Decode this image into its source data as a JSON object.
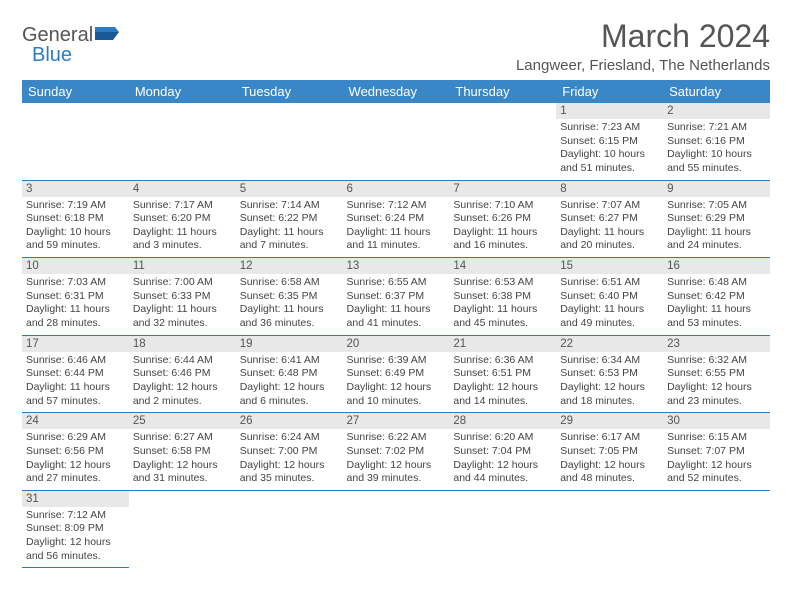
{
  "brand": {
    "name1": "General",
    "name2": "Blue"
  },
  "title": "March 2024",
  "location": "Langweer, Friesland, The Netherlands",
  "colors": {
    "header_bg": "#3a87c8",
    "header_fg": "#ffffff",
    "accent": "#2d7bc4",
    "daynum_bg": "#e8e8e8",
    "text": "#444"
  },
  "days_of_week": [
    "Sunday",
    "Monday",
    "Tuesday",
    "Wednesday",
    "Thursday",
    "Friday",
    "Saturday"
  ],
  "weeks": [
    [
      null,
      null,
      null,
      null,
      null,
      {
        "n": "1",
        "sr": "Sunrise: 7:23 AM",
        "ss": "Sunset: 6:15 PM",
        "dl1": "Daylight: 10 hours",
        "dl2": "and 51 minutes."
      },
      {
        "n": "2",
        "sr": "Sunrise: 7:21 AM",
        "ss": "Sunset: 6:16 PM",
        "dl1": "Daylight: 10 hours",
        "dl2": "and 55 minutes."
      }
    ],
    [
      {
        "n": "3",
        "sr": "Sunrise: 7:19 AM",
        "ss": "Sunset: 6:18 PM",
        "dl1": "Daylight: 10 hours",
        "dl2": "and 59 minutes."
      },
      {
        "n": "4",
        "sr": "Sunrise: 7:17 AM",
        "ss": "Sunset: 6:20 PM",
        "dl1": "Daylight: 11 hours",
        "dl2": "and 3 minutes."
      },
      {
        "n": "5",
        "sr": "Sunrise: 7:14 AM",
        "ss": "Sunset: 6:22 PM",
        "dl1": "Daylight: 11 hours",
        "dl2": "and 7 minutes."
      },
      {
        "n": "6",
        "sr": "Sunrise: 7:12 AM",
        "ss": "Sunset: 6:24 PM",
        "dl1": "Daylight: 11 hours",
        "dl2": "and 11 minutes."
      },
      {
        "n": "7",
        "sr": "Sunrise: 7:10 AM",
        "ss": "Sunset: 6:26 PM",
        "dl1": "Daylight: 11 hours",
        "dl2": "and 16 minutes."
      },
      {
        "n": "8",
        "sr": "Sunrise: 7:07 AM",
        "ss": "Sunset: 6:27 PM",
        "dl1": "Daylight: 11 hours",
        "dl2": "and 20 minutes."
      },
      {
        "n": "9",
        "sr": "Sunrise: 7:05 AM",
        "ss": "Sunset: 6:29 PM",
        "dl1": "Daylight: 11 hours",
        "dl2": "and 24 minutes."
      }
    ],
    [
      {
        "n": "10",
        "sr": "Sunrise: 7:03 AM",
        "ss": "Sunset: 6:31 PM",
        "dl1": "Daylight: 11 hours",
        "dl2": "and 28 minutes."
      },
      {
        "n": "11",
        "sr": "Sunrise: 7:00 AM",
        "ss": "Sunset: 6:33 PM",
        "dl1": "Daylight: 11 hours",
        "dl2": "and 32 minutes."
      },
      {
        "n": "12",
        "sr": "Sunrise: 6:58 AM",
        "ss": "Sunset: 6:35 PM",
        "dl1": "Daylight: 11 hours",
        "dl2": "and 36 minutes."
      },
      {
        "n": "13",
        "sr": "Sunrise: 6:55 AM",
        "ss": "Sunset: 6:37 PM",
        "dl1": "Daylight: 11 hours",
        "dl2": "and 41 minutes."
      },
      {
        "n": "14",
        "sr": "Sunrise: 6:53 AM",
        "ss": "Sunset: 6:38 PM",
        "dl1": "Daylight: 11 hours",
        "dl2": "and 45 minutes."
      },
      {
        "n": "15",
        "sr": "Sunrise: 6:51 AM",
        "ss": "Sunset: 6:40 PM",
        "dl1": "Daylight: 11 hours",
        "dl2": "and 49 minutes."
      },
      {
        "n": "16",
        "sr": "Sunrise: 6:48 AM",
        "ss": "Sunset: 6:42 PM",
        "dl1": "Daylight: 11 hours",
        "dl2": "and 53 minutes."
      }
    ],
    [
      {
        "n": "17",
        "sr": "Sunrise: 6:46 AM",
        "ss": "Sunset: 6:44 PM",
        "dl1": "Daylight: 11 hours",
        "dl2": "and 57 minutes."
      },
      {
        "n": "18",
        "sr": "Sunrise: 6:44 AM",
        "ss": "Sunset: 6:46 PM",
        "dl1": "Daylight: 12 hours",
        "dl2": "and 2 minutes."
      },
      {
        "n": "19",
        "sr": "Sunrise: 6:41 AM",
        "ss": "Sunset: 6:48 PM",
        "dl1": "Daylight: 12 hours",
        "dl2": "and 6 minutes."
      },
      {
        "n": "20",
        "sr": "Sunrise: 6:39 AM",
        "ss": "Sunset: 6:49 PM",
        "dl1": "Daylight: 12 hours",
        "dl2": "and 10 minutes."
      },
      {
        "n": "21",
        "sr": "Sunrise: 6:36 AM",
        "ss": "Sunset: 6:51 PM",
        "dl1": "Daylight: 12 hours",
        "dl2": "and 14 minutes."
      },
      {
        "n": "22",
        "sr": "Sunrise: 6:34 AM",
        "ss": "Sunset: 6:53 PM",
        "dl1": "Daylight: 12 hours",
        "dl2": "and 18 minutes."
      },
      {
        "n": "23",
        "sr": "Sunrise: 6:32 AM",
        "ss": "Sunset: 6:55 PM",
        "dl1": "Daylight: 12 hours",
        "dl2": "and 23 minutes."
      }
    ],
    [
      {
        "n": "24",
        "sr": "Sunrise: 6:29 AM",
        "ss": "Sunset: 6:56 PM",
        "dl1": "Daylight: 12 hours",
        "dl2": "and 27 minutes."
      },
      {
        "n": "25",
        "sr": "Sunrise: 6:27 AM",
        "ss": "Sunset: 6:58 PM",
        "dl1": "Daylight: 12 hours",
        "dl2": "and 31 minutes."
      },
      {
        "n": "26",
        "sr": "Sunrise: 6:24 AM",
        "ss": "Sunset: 7:00 PM",
        "dl1": "Daylight: 12 hours",
        "dl2": "and 35 minutes."
      },
      {
        "n": "27",
        "sr": "Sunrise: 6:22 AM",
        "ss": "Sunset: 7:02 PM",
        "dl1": "Daylight: 12 hours",
        "dl2": "and 39 minutes."
      },
      {
        "n": "28",
        "sr": "Sunrise: 6:20 AM",
        "ss": "Sunset: 7:04 PM",
        "dl1": "Daylight: 12 hours",
        "dl2": "and 44 minutes."
      },
      {
        "n": "29",
        "sr": "Sunrise: 6:17 AM",
        "ss": "Sunset: 7:05 PM",
        "dl1": "Daylight: 12 hours",
        "dl2": "and 48 minutes."
      },
      {
        "n": "30",
        "sr": "Sunrise: 6:15 AM",
        "ss": "Sunset: 7:07 PM",
        "dl1": "Daylight: 12 hours",
        "dl2": "and 52 minutes."
      }
    ],
    [
      {
        "n": "31",
        "sr": "Sunrise: 7:12 AM",
        "ss": "Sunset: 8:09 PM",
        "dl1": "Daylight: 12 hours",
        "dl2": "and 56 minutes."
      },
      null,
      null,
      null,
      null,
      null,
      null
    ]
  ]
}
